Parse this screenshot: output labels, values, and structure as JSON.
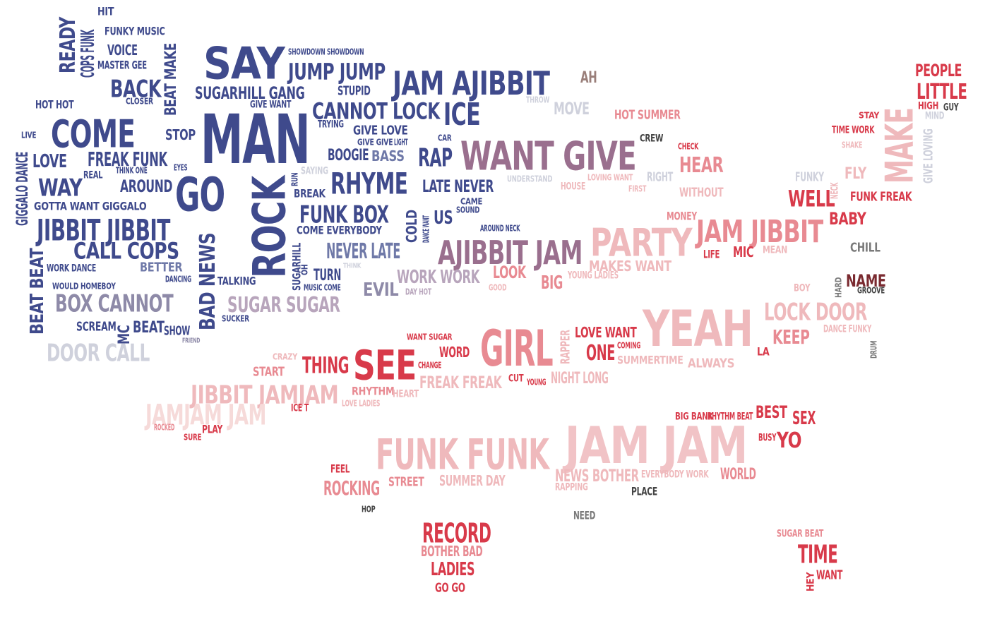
{
  "colors": {
    "navy": "#3f4a8c",
    "navy_light": "#6f79a8",
    "gray_purple": "#8e8aa8",
    "gray_light": "#cfd1dc",
    "mauve": "#9a6f8e",
    "pink_light": "#efb9bc",
    "pink": "#e88a92",
    "red": "#d83a4a",
    "dark_red": "#a82a36",
    "brown_red": "#7a2a30",
    "gray": "#7a7a7a"
  },
  "words": [
    {
      "text": "HIT",
      "color": "#3f4a8c"
    },
    {
      "text": "FUNKY MUSIC",
      "color": "#3f4a8c"
    },
    {
      "text": "READY",
      "color": "#3f4a8c"
    },
    {
      "text": "COPS FUNK",
      "color": "#3f4a8c"
    },
    {
      "text": "VOICE",
      "color": "#3f4a8c"
    },
    {
      "text": "MASTER GEE",
      "color": "#3f4a8c"
    },
    {
      "text": "BEAT MAKE",
      "color": "#3f4a8c"
    },
    {
      "text": "BACK",
      "color": "#3f4a8c"
    },
    {
      "text": "SAY",
      "color": "#3f4a8c"
    },
    {
      "text": "SHOWDOWN SHOWDOWN",
      "color": "#3f4a8c"
    },
    {
      "text": "JUMP JUMP",
      "color": "#3f4a8c"
    },
    {
      "text": "JAM AJIBBIT",
      "color": "#3f4a8c"
    },
    {
      "text": "AH",
      "color": "#9a7f7a"
    },
    {
      "text": "PEOPLE",
      "color": "#d83a4a"
    },
    {
      "text": "LITTLE",
      "color": "#d83a4a"
    },
    {
      "text": "HOT HOT",
      "color": "#3f4a8c"
    },
    {
      "text": "CLOSER",
      "color": "#3f4a8c"
    },
    {
      "text": "SUGARHILL GANG",
      "color": "#3f4a8c"
    },
    {
      "text": "STUPID",
      "color": "#3f4a8c"
    },
    {
      "text": "GIVE WANT",
      "color": "#3f4a8c"
    },
    {
      "text": "CANNOT LOCK",
      "color": "#3f4a8c"
    },
    {
      "text": "ICE",
      "color": "#3f4a8c"
    },
    {
      "text": "THROW",
      "color": "#cfd1dc"
    },
    {
      "text": "MOVE",
      "color": "#cfd1dc"
    },
    {
      "text": "HOT SUMMER",
      "color": "#e88a92"
    },
    {
      "text": "STAY",
      "color": "#d83a4a"
    },
    {
      "text": "HIGH",
      "color": "#d83a4a"
    },
    {
      "text": "GUY",
      "color": "#444444"
    },
    {
      "text": "MIND",
      "color": "#cfd1dc"
    },
    {
      "text": "COME",
      "color": "#3f4a8c"
    },
    {
      "text": "MAN",
      "color": "#3f4a8c"
    },
    {
      "text": "LIVE",
      "color": "#3f4a8c"
    },
    {
      "text": "STOP",
      "color": "#3f4a8c"
    },
    {
      "text": "TRYING",
      "color": "#3f4a8c"
    },
    {
      "text": "GIVE LOVE",
      "color": "#3f4a8c"
    },
    {
      "text": "GIVE GIVE",
      "color": "#3f4a8c"
    },
    {
      "text": "LIGHT",
      "color": "#3f4a8c"
    },
    {
      "text": "CAR",
      "color": "#3f4a8c"
    },
    {
      "text": "CREW",
      "color": "#444444"
    },
    {
      "text": "CHECK",
      "color": "#d83a4a"
    },
    {
      "text": "TIME WORK",
      "color": "#d83a4a"
    },
    {
      "text": "MAKE",
      "color": "#efb9bc"
    },
    {
      "text": "GIGGALO DANCE",
      "color": "#3f4a8c"
    },
    {
      "text": "LOVE",
      "color": "#3f4a8c"
    },
    {
      "text": "FREAK FUNK",
      "color": "#3f4a8c"
    },
    {
      "text": "EYES",
      "color": "#3f4a8c"
    },
    {
      "text": "THINK ONE",
      "color": "#3f4a8c"
    },
    {
      "text": "REAL",
      "color": "#3f4a8c"
    },
    {
      "text": "BOOGIE",
      "color": "#3f4a8c"
    },
    {
      "text": "BASS",
      "color": "#6f79a8"
    },
    {
      "text": "RAP",
      "color": "#3f4a8c"
    },
    {
      "text": "WANT GIVE",
      "color": "#9a6f8e"
    },
    {
      "text": "HEAR",
      "color": "#e88a92"
    },
    {
      "text": "SHAKE",
      "color": "#efb9bc"
    },
    {
      "text": "GIVE LOVING",
      "color": "#cfd1dc"
    },
    {
      "text": "WAY",
      "color": "#3f4a8c"
    },
    {
      "text": "AROUND",
      "color": "#3f4a8c"
    },
    {
      "text": "GO",
      "color": "#3f4a8c"
    },
    {
      "text": "ROCK",
      "color": "#3f4a8c"
    },
    {
      "text": "RUN",
      "color": "#3f4a8c"
    },
    {
      "text": "SAYING",
      "color": "#cfd1dc"
    },
    {
      "text": "RHYME",
      "color": "#3f4a8c"
    },
    {
      "text": "BREAK",
      "color": "#3f4a8c"
    },
    {
      "text": "LATE NEVER",
      "color": "#3f4a8c"
    },
    {
      "text": "UNDERSTAND",
      "color": "#cfd1dc"
    },
    {
      "text": "HOUSE",
      "color": "#efb9bc"
    },
    {
      "text": "LOVING WANT",
      "color": "#efb9bc"
    },
    {
      "text": "FIRST",
      "color": "#efb9bc"
    },
    {
      "text": "RIGHT",
      "color": "#cfd1dc"
    },
    {
      "text": "WITHOUT",
      "color": "#efb9bc"
    },
    {
      "text": "FUNKY",
      "color": "#cfd1dc"
    },
    {
      "text": "FLY",
      "color": "#efb9bc"
    },
    {
      "text": "NECK",
      "color": "#efb9bc"
    },
    {
      "text": "WELL",
      "color": "#d83a4a"
    },
    {
      "text": "FUNK FREAK",
      "color": "#d83a4a"
    },
    {
      "text": "GOTTA WANT GIGGALO",
      "color": "#3f4a8c"
    },
    {
      "text": "CAME",
      "color": "#3f4a8c"
    },
    {
      "text": "SOUND",
      "color": "#3f4a8c"
    },
    {
      "text": "FUNK BOX",
      "color": "#3f4a8c"
    },
    {
      "text": "JIBBIT JIBBIT",
      "color": "#3f4a8c"
    },
    {
      "text": "COLD",
      "color": "#3f4a8c"
    },
    {
      "text": "DANCE WANT",
      "color": "#3f4a8c"
    },
    {
      "text": "US",
      "color": "#3f4a8c"
    },
    {
      "text": "COME EVERYBODY",
      "color": "#3f4a8c"
    },
    {
      "text": "AROUND NECK",
      "color": "#3f4a8c"
    },
    {
      "text": "MONEY",
      "color": "#e88a92"
    },
    {
      "text": "BABY",
      "color": "#d83a4a"
    },
    {
      "text": "CALL COPS",
      "color": "#3f4a8c"
    },
    {
      "text": "BAD NEWS",
      "color": "#3f4a8c"
    },
    {
      "text": "SUGARHILL",
      "color": "#3f4a8c"
    },
    {
      "text": "OH",
      "color": "#3f4a8c"
    },
    {
      "text": "NEVER LATE",
      "color": "#6f79a8"
    },
    {
      "text": "AJIBBIT JAM",
      "color": "#9a6f8e"
    },
    {
      "text": "PARTY",
      "color": "#efb9bc"
    },
    {
      "text": "JAM JIBBIT",
      "color": "#e88a92"
    },
    {
      "text": "LIFE",
      "color": "#d83a4a"
    },
    {
      "text": "MIC",
      "color": "#d83a4a"
    },
    {
      "text": "MEAN",
      "color": "#efb9bc"
    },
    {
      "text": "CHILL",
      "color": "#7a7a7a"
    },
    {
      "text": "BEAT BEAT",
      "color": "#3f4a8c"
    },
    {
      "text": "WORK DANCE",
      "color": "#3f4a8c"
    },
    {
      "text": "BETTER",
      "color": "#6f79a8"
    },
    {
      "text": "DANCING",
      "color": "#3f4a8c"
    },
    {
      "text": "TALKING",
      "color": "#3f4a8c"
    },
    {
      "text": "TURN",
      "color": "#3f4a8c"
    },
    {
      "text": "THINK",
      "color": "#cfd1dc"
    },
    {
      "text": "WORK WORK",
      "color": "#b8a5bc"
    },
    {
      "text": "LOOK",
      "color": "#e88a92"
    },
    {
      "text": "MAKES WANT",
      "color": "#efb9bc"
    },
    {
      "text": "BIG",
      "color": "#e88a92"
    },
    {
      "text": "YOUNG LADIES",
      "color": "#efb9bc"
    },
    {
      "text": "HARD",
      "color": "#7a7a7a"
    },
    {
      "text": "NAME",
      "color": "#7a2a30"
    },
    {
      "text": "GROOVE",
      "color": "#444444"
    },
    {
      "text": "WOULD HOMEBOY",
      "color": "#3f4a8c"
    },
    {
      "text": "MUSIC COME",
      "color": "#3f4a8c"
    },
    {
      "text": "EVIL",
      "color": "#8e8aa8"
    },
    {
      "text": "DAY HOT",
      "color": "#b8a5bc"
    },
    {
      "text": "GOOD",
      "color": "#efb9bc"
    },
    {
      "text": "BOY",
      "color": "#efb9bc"
    },
    {
      "text": "BOX CANNOT",
      "color": "#8e8aa8"
    },
    {
      "text": "SUGAR SUGAR",
      "color": "#b8a5bc"
    },
    {
      "text": "SUCKER",
      "color": "#3f4a8c"
    },
    {
      "text": "YEAH",
      "color": "#efb9bc"
    },
    {
      "text": "LOCK DOOR",
      "color": "#efb9bc"
    },
    {
      "text": "DANCE FUNKY",
      "color": "#efb9bc"
    },
    {
      "text": "SCREAM",
      "color": "#3f4a8c"
    },
    {
      "text": "MC",
      "color": "#3f4a8c"
    },
    {
      "text": "BEAT",
      "color": "#3f4a8c"
    },
    {
      "text": "SHOW",
      "color": "#3f4a8c"
    },
    {
      "text": "FRIEND",
      "color": "#8e8aa8"
    },
    {
      "text": "LOVE WANT",
      "color": "#d83a4a"
    },
    {
      "text": "KEEP",
      "color": "#e88a92"
    },
    {
      "text": "DRUM",
      "color": "#7a7a7a"
    },
    {
      "text": "WANT SUGAR",
      "color": "#d83a4a"
    },
    {
      "text": "GIRL",
      "color": "#e88a92"
    },
    {
      "text": "RAPPER",
      "color": "#efb9bc"
    },
    {
      "text": "COMING",
      "color": "#d83a4a"
    },
    {
      "text": "ONE",
      "color": "#d83a4a"
    },
    {
      "text": "LA",
      "color": "#d83a4a"
    },
    {
      "text": "DOOR CALL",
      "color": "#cfd1dc"
    },
    {
      "text": "CRAZY",
      "color": "#efb9bc"
    },
    {
      "text": "WORD",
      "color": "#d83a4a"
    },
    {
      "text": "SUMMERTIME",
      "color": "#efb9bc"
    },
    {
      "text": "ALWAYS",
      "color": "#efb9bc"
    },
    {
      "text": "START",
      "color": "#e88a92"
    },
    {
      "text": "THING",
      "color": "#d83a4a"
    },
    {
      "text": "SEE",
      "color": "#d83a4a"
    },
    {
      "text": "CHANGE",
      "color": "#d83a4a"
    },
    {
      "text": "CUT",
      "color": "#d83a4a"
    },
    {
      "text": "YOUNG",
      "color": "#d83a4a"
    },
    {
      "text": "FREAK FREAK",
      "color": "#efb9bc"
    },
    {
      "text": "NIGHT LONG",
      "color": "#efb9bc"
    },
    {
      "text": "JIBBIT JAMJAM",
      "color": "#efb9bc"
    },
    {
      "text": "RHYTHM",
      "color": "#e88a92"
    },
    {
      "text": "HEART",
      "color": "#efb9bc"
    },
    {
      "text": "LOVE LADIES",
      "color": "#efb9bc"
    },
    {
      "text": "JAMJAM JAM",
      "color": "#f6dad9"
    },
    {
      "text": "ICE T",
      "color": "#d83a4a"
    },
    {
      "text": "BIG BANK",
      "color": "#d83a4a"
    },
    {
      "text": "RHYTHM BEAT",
      "color": "#d83a4a"
    },
    {
      "text": "BEST",
      "color": "#d83a4a"
    },
    {
      "text": "SEX",
      "color": "#d83a4a"
    },
    {
      "text": "ROCKED",
      "color": "#e88a92"
    },
    {
      "text": "PLAY",
      "color": "#d83a4a"
    },
    {
      "text": "SURE",
      "color": "#d83a4a"
    },
    {
      "text": "FUNK FUNK",
      "color": "#efb9bc"
    },
    {
      "text": "JAM JAM",
      "color": "#f1c3c6"
    },
    {
      "text": "BUSY",
      "color": "#d83a4a"
    },
    {
      "text": "YO",
      "color": "#d83a4a"
    },
    {
      "text": "FEEL",
      "color": "#d83a4a"
    },
    {
      "text": "NEWS BOTHER",
      "color": "#efb9bc"
    },
    {
      "text": "EVERYBODY WORK",
      "color": "#efb9bc"
    },
    {
      "text": "WORLD",
      "color": "#e88a92"
    },
    {
      "text": "ROCKING",
      "color": "#e88a92"
    },
    {
      "text": "STREET",
      "color": "#e88a92"
    },
    {
      "text": "SUMMER DAY",
      "color": "#efb9bc"
    },
    {
      "text": "RAPPING",
      "color": "#efb9bc"
    },
    {
      "text": "PLACE",
      "color": "#444444"
    },
    {
      "text": "HOP",
      "color": "#444444"
    },
    {
      "text": "NEED",
      "color": "#7a7a7a"
    },
    {
      "text": "RECORD",
      "color": "#d83a4a"
    },
    {
      "text": "BOTHER BAD",
      "color": "#e88a92"
    },
    {
      "text": "LADIES",
      "color": "#d83a4a"
    },
    {
      "text": "GO GO",
      "color": "#d83a4a"
    },
    {
      "text": "SUGAR BEAT",
      "color": "#e88a92"
    },
    {
      "text": "TIME",
      "color": "#d83a4a"
    },
    {
      "text": "HEY",
      "color": "#d83a4a"
    },
    {
      "text": "WANT",
      "color": "#d83a4a"
    }
  ]
}
